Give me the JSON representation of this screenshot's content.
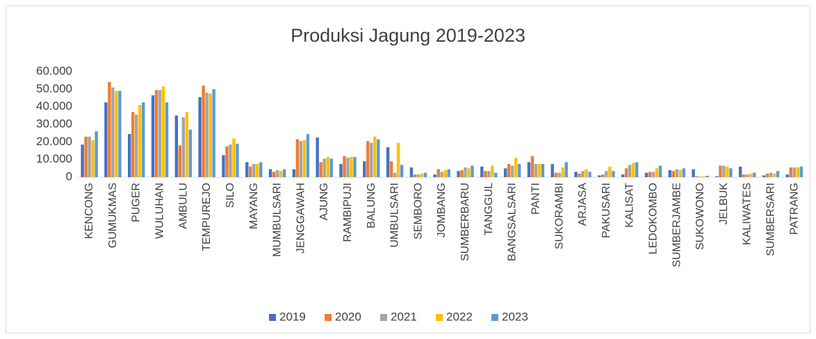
{
  "chart_data": {
    "type": "bar",
    "title": "Produksi Jagung 2019-2023",
    "categories": [
      "KENCONG",
      "GUMUKMAS",
      "PUGER",
      "WULUHAN",
      "AMBULU",
      "TEMPUREJO",
      "SILO",
      "MAYANG",
      "MUMBULSARI",
      "JENGGAWAH",
      "AJUNG",
      "RAMBIPUJI",
      "BALUNG",
      "UMBULSARI",
      "SEMBORO",
      "JOMBANG",
      "SUMBERBARU",
      "TANGGUL",
      "BANGSALSARI",
      "PANTI",
      "SUKORAMBI",
      "ARJASA",
      "PAKUSARI",
      "KALISAT",
      "LEDOKOMBO",
      "SUMBERJAMBE",
      "SUKOWONO",
      "JELBUK",
      "KALIWATES",
      "SUMBERSARI",
      "PATRANG"
    ],
    "series": [
      {
        "name": "2019",
        "color": "#4472c4",
        "values": [
          18500,
          42500,
          24500,
          46500,
          35000,
          45500,
          12500,
          8500,
          4500,
          4500,
          22500,
          7500,
          9000,
          17000,
          5500,
          1500,
          3500,
          6000,
          5000,
          8500,
          7500,
          3000,
          1000,
          1500,
          2500,
          4000,
          4500,
          500,
          6000,
          1000,
          1500
        ]
      },
      {
        "name": "2020",
        "color": "#ed7d31",
        "values": [
          23000,
          54000,
          37000,
          49500,
          18000,
          52000,
          17500,
          6000,
          3000,
          21500,
          8500,
          12000,
          20500,
          9000,
          1500,
          4500,
          4000,
          3500,
          7500,
          12000,
          2500,
          2000,
          1500,
          5000,
          3000,
          3500,
          500,
          6500,
          1500,
          2000,
          5500
        ]
      },
      {
        "name": "2021",
        "color": "#a5a5a5",
        "values": [
          23000,
          51000,
          35500,
          49500,
          34000,
          48000,
          18500,
          7500,
          4000,
          20500,
          10500,
          11000,
          19500,
          2500,
          1500,
          3000,
          5500,
          3500,
          6500,
          7500,
          2500,
          3500,
          3500,
          7000,
          3000,
          4500,
          300,
          6500,
          1500,
          2500,
          5500
        ]
      },
      {
        "name": "2022",
        "color": "#ffc000",
        "values": [
          21000,
          49000,
          41000,
          51500,
          37000,
          47500,
          22000,
          7500,
          3500,
          21000,
          11500,
          11500,
          23000,
          19500,
          2000,
          4000,
          5000,
          6500,
          11000,
          7500,
          5500,
          4500,
          6000,
          8000,
          5000,
          4000,
          500,
          6000,
          2000,
          2000,
          5500
        ]
      },
      {
        "name": "2023",
        "color": "#5b9bd5",
        "values": [
          26000,
          49000,
          42500,
          42500,
          27000,
          50000,
          19000,
          8500,
          4500,
          24500,
          10500,
          11500,
          21500,
          7000,
          2500,
          4500,
          6500,
          2500,
          7500,
          7500,
          8500,
          3000,
          3500,
          8500,
          6500,
          5000,
          800,
          5000,
          2500,
          3500,
          6000
        ]
      }
    ],
    "ylim": [
      0,
      60000
    ],
    "yticks": [
      0,
      {
        "value": 10000,
        "label": "10.000"
      },
      {
        "value": 20000,
        "label": "20.000"
      },
      {
        "value": 30000,
        "label": "30.000"
      },
      {
        "value": 40000,
        "label": "40.000"
      },
      {
        "value": 50000,
        "label": "50.000"
      },
      {
        "value": 60000,
        "label": "60.000"
      }
    ],
    "legend": "bottom"
  }
}
